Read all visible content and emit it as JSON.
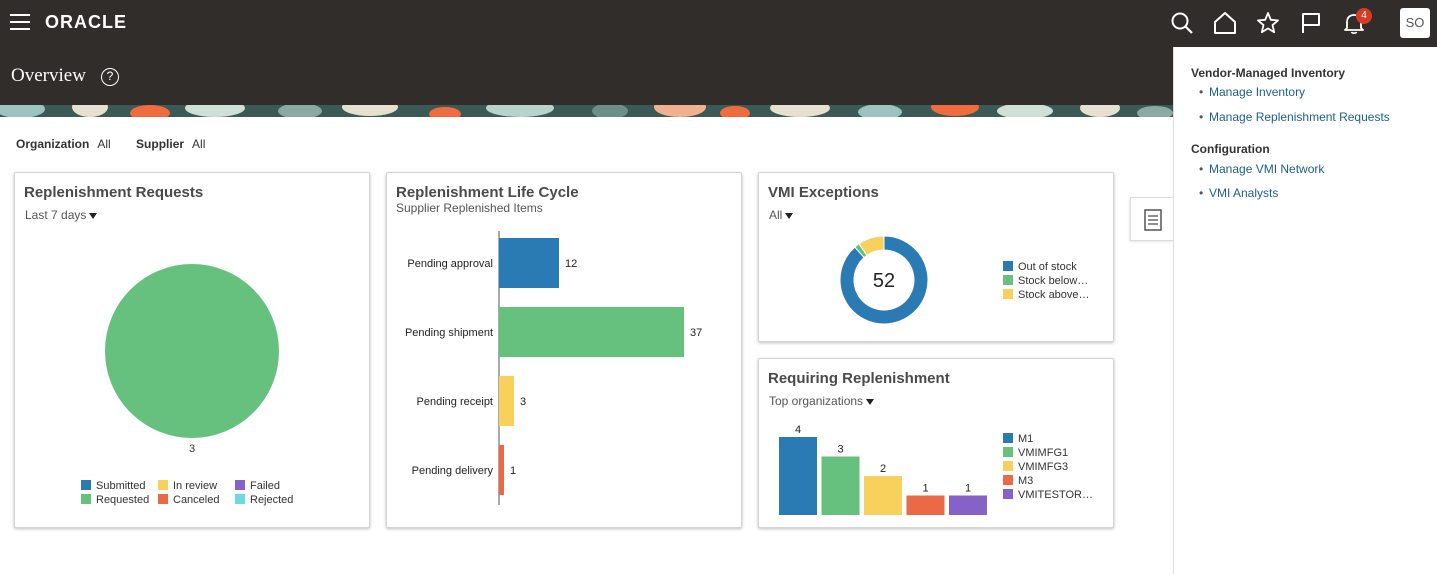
{
  "header": {
    "logo": "ORACLE",
    "page_title": "Overview",
    "help_glyph": "?",
    "notification_count": "4",
    "user_initials": "SO"
  },
  "filters": {
    "organization_label": "Organization",
    "organization_value": "All",
    "supplier_label": "Supplier",
    "supplier_value": "All"
  },
  "replenishment_requests": {
    "title": "Replenishment Requests",
    "period": "Last 7 days",
    "slice_label": "3",
    "legend": [
      {
        "label": "Submitted",
        "color": "#2a7ab4"
      },
      {
        "label": "In review",
        "color": "#f7d15c"
      },
      {
        "label": "Failed",
        "color": "#8561c8"
      },
      {
        "label": "Requested",
        "color": "#67c17e"
      },
      {
        "label": "Canceled",
        "color": "#ea6a47"
      },
      {
        "label": "Rejected",
        "color": "#6ddbdb"
      }
    ]
  },
  "life_cycle": {
    "title": "Replenishment Life Cycle",
    "subtitle": "Supplier Replenished Items"
  },
  "vmi_exceptions": {
    "title": "VMI Exceptions",
    "filter": "All",
    "total": "52",
    "legend": [
      {
        "label": "Out of stock",
        "color": "#2a7ab4"
      },
      {
        "label": "Stock below…",
        "color": "#67c17e"
      },
      {
        "label": "Stock above…",
        "color": "#f7d15c"
      }
    ]
  },
  "requiring": {
    "title": "Requiring Replenishment",
    "filter": "Top organizations"
  },
  "right_panel": {
    "section1": "Vendor-Managed Inventory",
    "link1": "Manage Inventory",
    "link2": "Manage Replenishment Requests",
    "section2": "Configuration",
    "link3": "Manage VMI Network",
    "link4": "VMI Analysts"
  },
  "chart_data": [
    {
      "type": "pie",
      "title": "Replenishment Requests",
      "categories": [
        "Submitted",
        "In review",
        "Failed",
        "Requested",
        "Canceled",
        "Rejected"
      ],
      "values": [
        0,
        0,
        0,
        3,
        0,
        0
      ],
      "colors": [
        "#2a7ab4",
        "#f7d15c",
        "#8561c8",
        "#67c17e",
        "#ea6a47",
        "#6ddbdb"
      ]
    },
    {
      "type": "bar",
      "orientation": "horizontal",
      "title": "Replenishment Life Cycle",
      "subtitle": "Supplier Replenished Items",
      "categories": [
        "Pending approval",
        "Pending shipment",
        "Pending receipt",
        "Pending delivery"
      ],
      "values": [
        12,
        37,
        3,
        1
      ],
      "colors": [
        "#2a7ab4",
        "#67c17e",
        "#f7d15c",
        "#ea6a47"
      ],
      "xlim": [
        0,
        40
      ]
    },
    {
      "type": "pie",
      "subtype": "donut",
      "title": "VMI Exceptions",
      "center_label": "52",
      "categories": [
        "Out of stock",
        "Stock below…",
        "Stock above…"
      ],
      "values": [
        46,
        1,
        5
      ],
      "colors": [
        "#2a7ab4",
        "#67c17e",
        "#f7d15c"
      ]
    },
    {
      "type": "bar",
      "title": "Requiring Replenishment",
      "categories": [
        "M1",
        "VMIMFG1",
        "VMIMFG3",
        "M3",
        "VMITESTOR…"
      ],
      "values": [
        4,
        3,
        2,
        1,
        1
      ],
      "colors": [
        "#2a7ab4",
        "#67c17e",
        "#f7d15c",
        "#ea6a47",
        "#8561c8"
      ],
      "ylim": [
        0,
        4
      ]
    }
  ]
}
